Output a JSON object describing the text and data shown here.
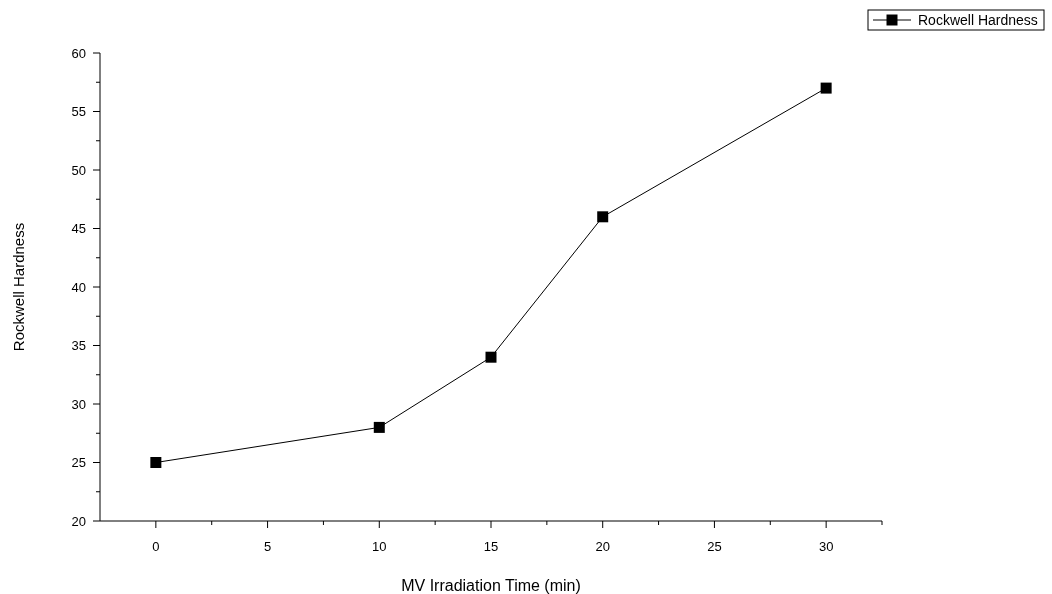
{
  "chart_data": {
    "type": "line",
    "xlabel": "MV Irradiation Time (min)",
    "ylabel": "Rockwell Hardness",
    "x": [
      0,
      10,
      15,
      20,
      30
    ],
    "series": [
      {
        "name": "Rockwell Hardness",
        "color": "#000000",
        "values": [
          25,
          28,
          34,
          46,
          57
        ]
      }
    ],
    "xlim": [
      -2.5,
      32.5
    ],
    "xticks": [
      0,
      {
        "value": 2.5,
        "label": null
      },
      5,
      {
        "value": 7.5,
        "label": null
      },
      10,
      {
        "value": 12.5,
        "label": null
      },
      15,
      {
        "value": 17.5,
        "label": null
      },
      20,
      {
        "value": 22.5,
        "label": null
      },
      25,
      {
        "value": 27.5,
        "label": null
      },
      30,
      {
        "value": 32.5,
        "label": null
      }
    ],
    "ylim": [
      20,
      60
    ],
    "yticks": [
      20,
      {
        "value": 22.5,
        "label": null
      },
      25,
      {
        "value": 27.5,
        "label": null
      },
      30,
      {
        "value": 32.5,
        "label": null
      },
      35,
      {
        "value": 37.5,
        "label": null
      },
      40,
      {
        "value": 42.5,
        "label": null
      },
      45,
      {
        "value": 47.5,
        "label": null
      },
      50,
      {
        "value": 52.5,
        "label": null
      },
      55,
      {
        "value": 57.5,
        "label": null
      },
      60
    ],
    "marker": "square",
    "line_style": "solid",
    "grid": false,
    "legend": "top right"
  }
}
